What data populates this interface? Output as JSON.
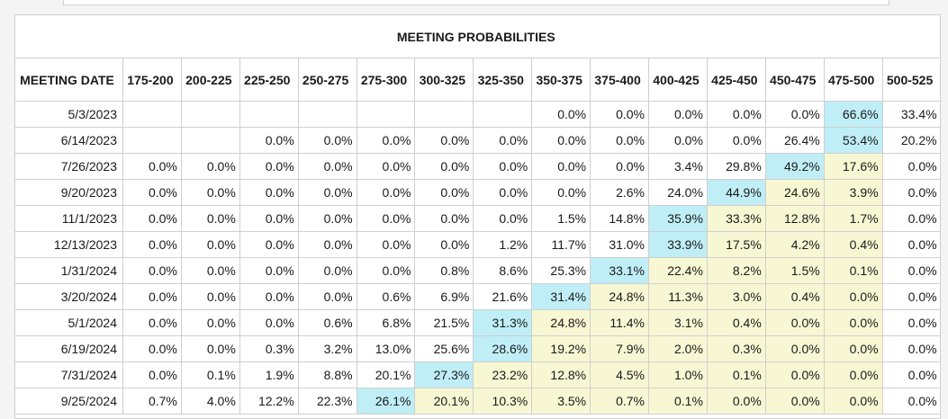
{
  "title": "MEETING PROBABILITIES",
  "header": {
    "date_label": "MEETING DATE",
    "ranges": [
      "175-200",
      "200-225",
      "225-250",
      "250-275",
      "275-300",
      "300-325",
      "325-350",
      "350-375",
      "375-400",
      "400-425",
      "425-450",
      "450-475",
      "475-500",
      "500-525"
    ]
  },
  "colors": {
    "highlight_max": "#bfeef6",
    "highlight_range": "#f7f7d3",
    "border": "#cfcfcf"
  },
  "rows": [
    {
      "date": "5/3/2023",
      "values": [
        "",
        "",
        "",
        "",
        "",
        "",
        "",
        "0.0%",
        "0.0%",
        "0.0%",
        "0.0%",
        "0.0%",
        "66.6%",
        "33.4%"
      ],
      "max": 12,
      "shade": []
    },
    {
      "date": "6/14/2023",
      "values": [
        "",
        "",
        "0.0%",
        "0.0%",
        "0.0%",
        "0.0%",
        "0.0%",
        "0.0%",
        "0.0%",
        "0.0%",
        "0.0%",
        "26.4%",
        "53.4%",
        "20.2%"
      ],
      "max": 12,
      "shade": []
    },
    {
      "date": "7/26/2023",
      "values": [
        "0.0%",
        "0.0%",
        "0.0%",
        "0.0%",
        "0.0%",
        "0.0%",
        "0.0%",
        "0.0%",
        "0.0%",
        "3.4%",
        "29.8%",
        "49.2%",
        "17.6%",
        "0.0%"
      ],
      "max": 11,
      "shade": [
        12
      ]
    },
    {
      "date": "9/20/2023",
      "values": [
        "0.0%",
        "0.0%",
        "0.0%",
        "0.0%",
        "0.0%",
        "0.0%",
        "0.0%",
        "0.0%",
        "2.6%",
        "24.0%",
        "44.9%",
        "24.6%",
        "3.9%",
        "0.0%"
      ],
      "max": 10,
      "shade": [
        11,
        12
      ]
    },
    {
      "date": "11/1/2023",
      "values": [
        "0.0%",
        "0.0%",
        "0.0%",
        "0.0%",
        "0.0%",
        "0.0%",
        "0.0%",
        "1.5%",
        "14.8%",
        "35.9%",
        "33.3%",
        "12.8%",
        "1.7%",
        "0.0%"
      ],
      "max": 9,
      "shade": [
        10,
        11,
        12
      ]
    },
    {
      "date": "12/13/2023",
      "values": [
        "0.0%",
        "0.0%",
        "0.0%",
        "0.0%",
        "0.0%",
        "0.0%",
        "1.2%",
        "11.7%",
        "31.0%",
        "33.9%",
        "17.5%",
        "4.2%",
        "0.4%",
        "0.0%"
      ],
      "max": 9,
      "shade": [
        10,
        11,
        12
      ]
    },
    {
      "date": "1/31/2024",
      "values": [
        "0.0%",
        "0.0%",
        "0.0%",
        "0.0%",
        "0.0%",
        "0.8%",
        "8.6%",
        "25.3%",
        "33.1%",
        "22.4%",
        "8.2%",
        "1.5%",
        "0.1%",
        "0.0%"
      ],
      "max": 8,
      "shade": [
        9,
        10,
        11,
        12
      ]
    },
    {
      "date": "3/20/2024",
      "values": [
        "0.0%",
        "0.0%",
        "0.0%",
        "0.0%",
        "0.6%",
        "6.9%",
        "21.6%",
        "31.4%",
        "24.8%",
        "11.3%",
        "3.0%",
        "0.4%",
        "0.0%",
        "0.0%"
      ],
      "max": 7,
      "shade": [
        8,
        9,
        10,
        11,
        12
      ]
    },
    {
      "date": "5/1/2024",
      "values": [
        "0.0%",
        "0.0%",
        "0.0%",
        "0.6%",
        "6.8%",
        "21.5%",
        "31.3%",
        "24.8%",
        "11.4%",
        "3.1%",
        "0.4%",
        "0.0%",
        "0.0%",
        "0.0%"
      ],
      "max": 6,
      "shade": [
        7,
        8,
        9,
        10,
        11,
        12
      ]
    },
    {
      "date": "6/19/2024",
      "values": [
        "0.0%",
        "0.0%",
        "0.3%",
        "3.2%",
        "13.0%",
        "25.6%",
        "28.6%",
        "19.2%",
        "7.9%",
        "2.0%",
        "0.3%",
        "0.0%",
        "0.0%",
        "0.0%"
      ],
      "max": 6,
      "shade": [
        7,
        8,
        9,
        10,
        11,
        12
      ]
    },
    {
      "date": "7/31/2024",
      "values": [
        "0.0%",
        "0.1%",
        "1.9%",
        "8.8%",
        "20.1%",
        "27.3%",
        "23.2%",
        "12.8%",
        "4.5%",
        "1.0%",
        "0.1%",
        "0.0%",
        "0.0%",
        "0.0%"
      ],
      "max": 5,
      "shade": [
        6,
        7,
        8,
        9,
        10,
        11,
        12
      ]
    },
    {
      "date": "9/25/2024",
      "values": [
        "0.7%",
        "4.0%",
        "12.2%",
        "22.3%",
        "26.1%",
        "20.1%",
        "10.3%",
        "3.5%",
        "0.7%",
        "0.1%",
        "0.0%",
        "0.0%",
        "0.0%",
        "0.0%"
      ],
      "max": 4,
      "shade": [
        5,
        6,
        7,
        8,
        9,
        10,
        11,
        12
      ]
    }
  ]
}
